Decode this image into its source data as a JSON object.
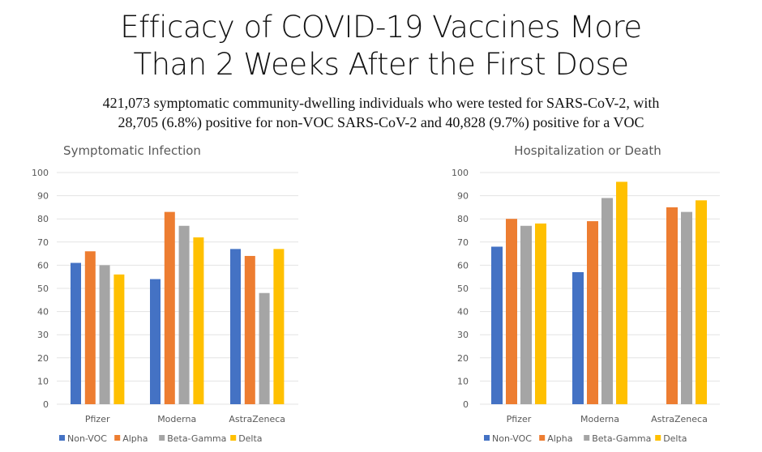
{
  "page": {
    "title_line1": "Efficacy of COVID-19 Vaccines More",
    "title_line2": "Than 2 Weeks After the First Dose",
    "subtitle_line1": "421,073 symptomatic community-dwelling  individuals  who were tested for SARS-CoV-2,  with",
    "subtitle_line2": "28,705 (6.8%) positive for non-VOC SARS-CoV-2  and 40,828 (9.7%) positive for a VOC"
  },
  "colors": {
    "Non-VOC": "#4472C4",
    "Alpha": "#ED7D31",
    "Beta-Gamma": "#A5A5A5",
    "Delta": "#FFC000"
  },
  "chart_data": [
    {
      "type": "bar",
      "title": "Symptomatic Infection",
      "categories": [
        "Pfizer",
        "Moderna",
        "AstraZeneca"
      ],
      "series": [
        {
          "name": "Non-VOC",
          "values": [
            61,
            54,
            67
          ]
        },
        {
          "name": "Alpha",
          "values": [
            66,
            83,
            64
          ]
        },
        {
          "name": "Beta-Gamma",
          "values": [
            60,
            77,
            48
          ]
        },
        {
          "name": "Delta",
          "values": [
            56,
            72,
            67
          ]
        }
      ],
      "ylim": [
        0,
        100
      ],
      "yticks": [
        0,
        10,
        20,
        30,
        40,
        50,
        60,
        70,
        80,
        90,
        100
      ],
      "xlabel": "",
      "ylabel": "",
      "grid": true,
      "legend": "bottom"
    },
    {
      "type": "bar",
      "title": "Hospitalization or Death",
      "categories": [
        "Pfizer",
        "Moderna",
        "AstraZeneca"
      ],
      "series": [
        {
          "name": "Non-VOC",
          "values": [
            68,
            57,
            null
          ]
        },
        {
          "name": "Alpha",
          "values": [
            80,
            79,
            85
          ]
        },
        {
          "name": "Beta-Gamma",
          "values": [
            77,
            89,
            83
          ]
        },
        {
          "name": "Delta",
          "values": [
            78,
            96,
            88
          ]
        }
      ],
      "ylim": [
        0,
        100
      ],
      "yticks": [
        0,
        10,
        20,
        30,
        40,
        50,
        60,
        70,
        80,
        90,
        100
      ],
      "xlabel": "",
      "ylabel": "",
      "grid": true,
      "legend": "bottom"
    }
  ]
}
